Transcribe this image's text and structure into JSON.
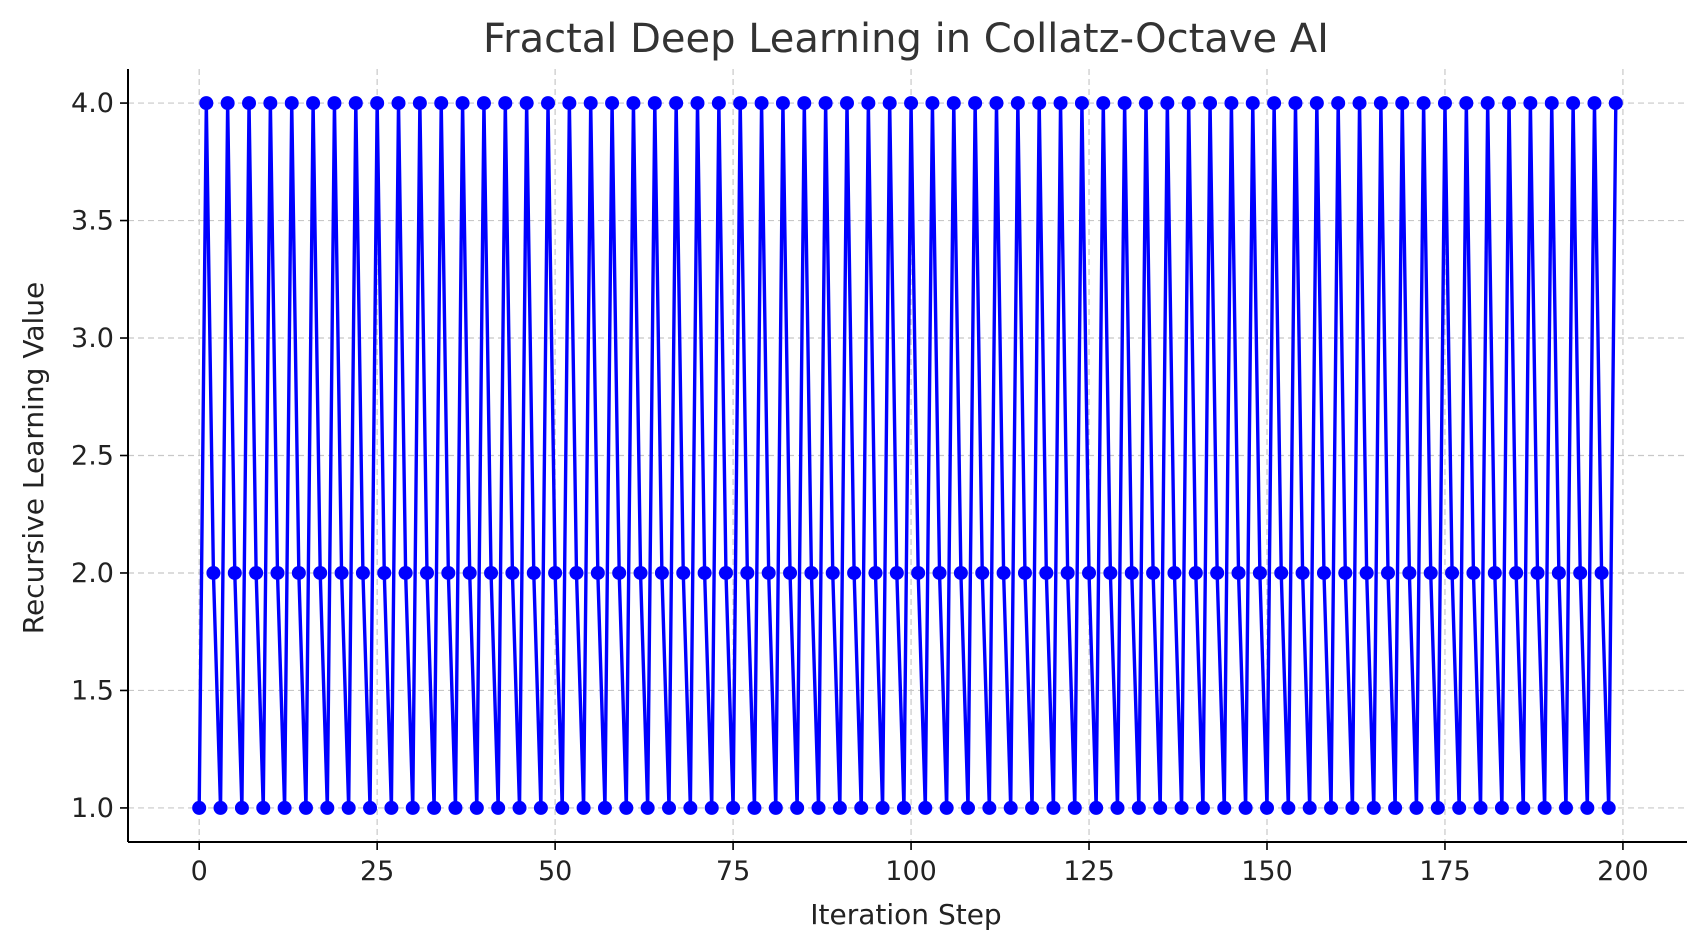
{
  "chart_data": {
    "type": "line",
    "title": "Fractal Deep Learning in Collatz-Octave AI",
    "xlabel": "Iteration Step",
    "ylabel": "Recursive Learning Value",
    "xlim": [
      -10,
      209
    ],
    "ylim": [
      0.855,
      4.145
    ],
    "xticks": [
      0,
      25,
      50,
      75,
      100,
      125,
      150,
      175,
      200
    ],
    "xtick_labels": [
      "0",
      "25",
      "50",
      "75",
      "100",
      "125",
      "150",
      "175",
      "200"
    ],
    "yticks": [
      1.0,
      1.5,
      2.0,
      2.5,
      3.0,
      3.5,
      4.0
    ],
    "ytick_labels": [
      "1.0",
      "1.5",
      "2.0",
      "2.5",
      "3.0",
      "3.5",
      "4.0"
    ],
    "grid": true,
    "marker": "circle",
    "color": "#0000ff",
    "series": [
      {
        "x_start": 0,
        "x_step": 1,
        "values": [
          1,
          4,
          2,
          1,
          4,
          2,
          1,
          4,
          2,
          1,
          4,
          2,
          1,
          4,
          2,
          1,
          4,
          2,
          1,
          4,
          2,
          1,
          4,
          2,
          1,
          4,
          2,
          1,
          4,
          2,
          1,
          4,
          2,
          1,
          4,
          2,
          1,
          4,
          2,
          1,
          4,
          2,
          1,
          4,
          2,
          1,
          4,
          2,
          1,
          4,
          2,
          1,
          4,
          2,
          1,
          4,
          2,
          1,
          4,
          2,
          1,
          4,
          2,
          1,
          4,
          2,
          1,
          4,
          2,
          1,
          4,
          2,
          1,
          4,
          2,
          1,
          4,
          2,
          1,
          4,
          2,
          1,
          4,
          2,
          1,
          4,
          2,
          1,
          4,
          2,
          1,
          4,
          2,
          1,
          4,
          2,
          1,
          4,
          2,
          1,
          4,
          2,
          1,
          4,
          2,
          1,
          4,
          2,
          1,
          4,
          2,
          1,
          4,
          2,
          1,
          4,
          2,
          1,
          4,
          2,
          1,
          4,
          2,
          1,
          4,
          2,
          1,
          4,
          2,
          1,
          4,
          2,
          1,
          4,
          2,
          1,
          4,
          2,
          1,
          4,
          2,
          1,
          4,
          2,
          1,
          4,
          2,
          1,
          4,
          2,
          1,
          4,
          2,
          1,
          4,
          2,
          1,
          4,
          2,
          1,
          4,
          2,
          1,
          4,
          2,
          1,
          4,
          2,
          1,
          4,
          2,
          1,
          4,
          2,
          1,
          4,
          2,
          1,
          4,
          2,
          1,
          4,
          2,
          1,
          4,
          2,
          1,
          4,
          2,
          1,
          4,
          2,
          1,
          4,
          2,
          1,
          4,
          2,
          1,
          4
        ]
      }
    ]
  }
}
